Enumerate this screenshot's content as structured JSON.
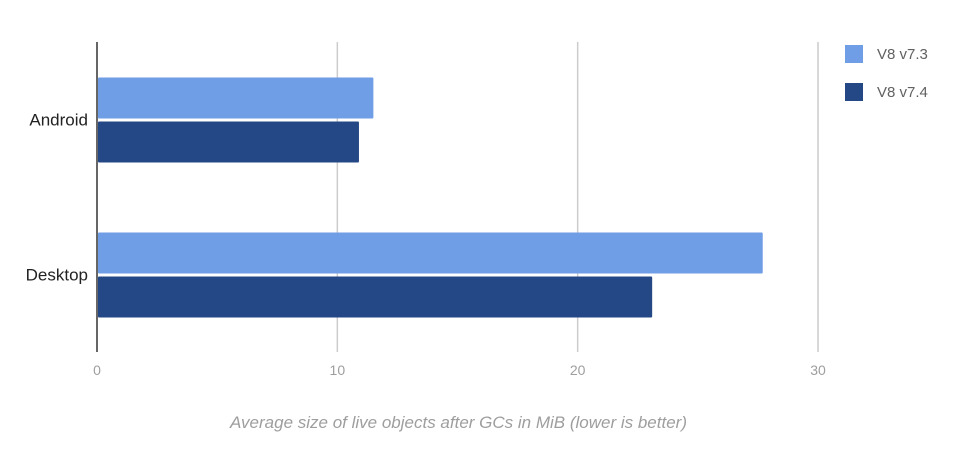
{
  "chart_data": {
    "type": "bar",
    "orientation": "horizontal",
    "categories": [
      "Android",
      "Desktop"
    ],
    "series": [
      {
        "name": "V8 v7.3",
        "color": "#6f9ee6",
        "values": [
          11.5,
          27.7
        ]
      },
      {
        "name": "V8 v7.4",
        "color": "#244886",
        "values": [
          10.9,
          23.1
        ]
      }
    ],
    "xlim": [
      0,
      30
    ],
    "xticks": [
      "0",
      "10",
      "20",
      "30"
    ],
    "xlabel": "Average size of live objects after GCs in MiB (lower is better)",
    "grid": true,
    "legend": "top-right"
  }
}
